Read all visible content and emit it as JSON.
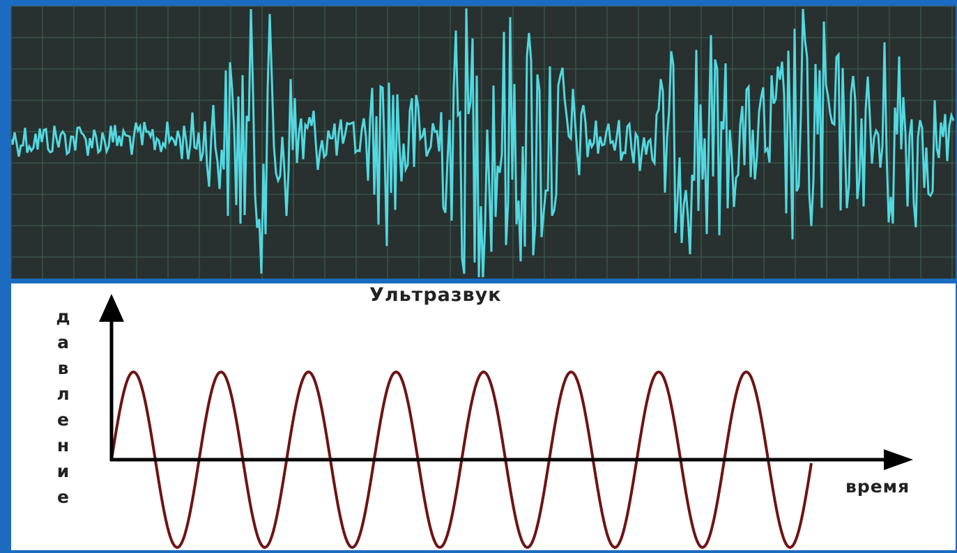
{
  "title": "Ультразвук",
  "y_label": "давление",
  "x_label": "время"
}
